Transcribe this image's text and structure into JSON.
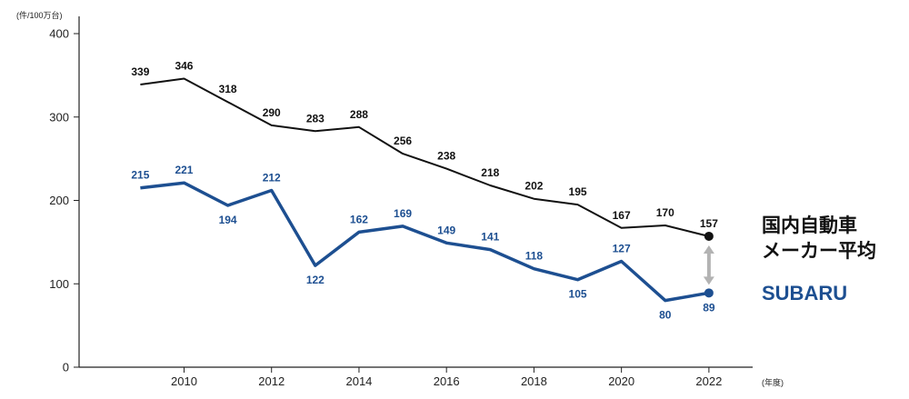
{
  "chart_data": {
    "type": "line",
    "y_unit": "(件/100万台)",
    "x_unit": "(年度)",
    "x": [
      2009,
      2010,
      2011,
      2012,
      2013,
      2014,
      2015,
      2016,
      2017,
      2018,
      2019,
      2020,
      2021,
      2022
    ],
    "x_tick_labels": [
      "2010",
      "2012",
      "2014",
      "2016",
      "2018",
      "2020",
      "2022"
    ],
    "y_ticks": [
      0,
      100,
      200,
      300,
      400
    ],
    "xlim": [
      2007.6,
      2023.0
    ],
    "ylim": [
      0,
      400
    ],
    "grid": false,
    "series": [
      {
        "name": "国内自動車メーカー平均",
        "name_lines": [
          "国内自動車",
          "メーカー平均"
        ],
        "color": "#111111",
        "values": [
          339,
          346,
          318,
          290,
          283,
          288,
          256,
          238,
          218,
          202,
          195,
          167,
          170,
          157
        ]
      },
      {
        "name": "SUBARU",
        "name_lines": [
          "SUBARU"
        ],
        "color": "#1d4f91",
        "values": [
          215,
          221,
          194,
          212,
          122,
          162,
          169,
          149,
          141,
          118,
          105,
          127,
          80,
          89
        ]
      }
    ],
    "gap_arrow_color": "#b3b3b3"
  }
}
